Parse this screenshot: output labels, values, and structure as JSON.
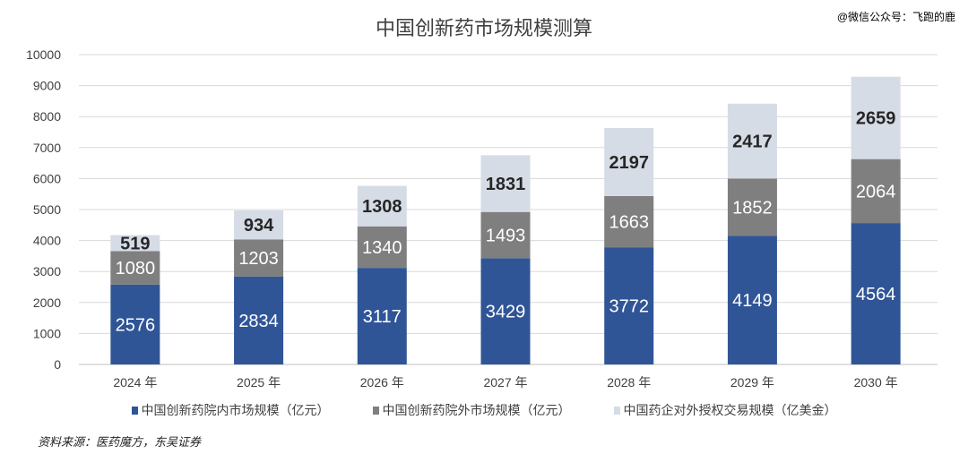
{
  "watermark": "@微信公众号：飞跑的鹿",
  "source": "资料来源：医药魔方，东吴证券",
  "colors": {
    "inner": "#2F5597",
    "outer": "#7F7F7F",
    "license": "#D6DCE5",
    "grid": "#D9D9D9"
  },
  "chart_data": {
    "type": "bar",
    "stacked": true,
    "title": "中国创新药市场规模测算",
    "categories": [
      "2024 年",
      "2025 年",
      "2026 年",
      "2027 年",
      "2028 年",
      "2029 年",
      "2030 年"
    ],
    "series": [
      {
        "name": "中国创新药院内市场规模（亿元）",
        "values": [
          2576,
          2834,
          3117,
          3429,
          3772,
          4149,
          4564
        ]
      },
      {
        "name": "中国创新药院外市场规模（亿元）",
        "values": [
          1080,
          1203,
          1340,
          1493,
          1663,
          1852,
          2064
        ]
      },
      {
        "name": "中国药企对外授权交易规模（亿美金）",
        "values": [
          519,
          934,
          1308,
          1831,
          2197,
          2417,
          2659
        ]
      }
    ],
    "ylim": [
      0,
      10000
    ],
    "yticks": [
      "0",
      "1000",
      "2000",
      "3000",
      "4000",
      "5000",
      "6000",
      "7000",
      "8000",
      "9000",
      "10000"
    ],
    "grid": true,
    "legend": "bottom"
  }
}
